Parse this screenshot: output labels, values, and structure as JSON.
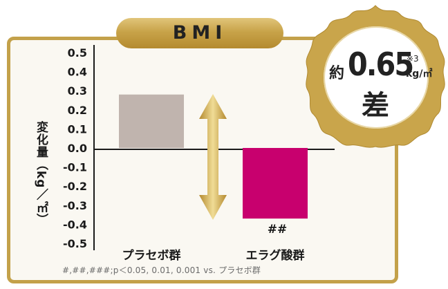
{
  "chart_data": {
    "type": "bar",
    "title": "BMI",
    "categories": [
      "プラセボ群",
      "エラグ酸群"
    ],
    "values": [
      0.28,
      -0.37
    ],
    "colors": [
      "#c0b4ae",
      "#c8006e"
    ],
    "ylabel": "変化量（kg／㎡）",
    "ylim": [
      -0.5,
      0.5
    ],
    "yticks": [
      "0.5",
      "0.4",
      "0.3",
      "0.2",
      "0.1",
      "0.0",
      "-0.1",
      "-0.2",
      "-0.3",
      "-0.4",
      "-0.5"
    ],
    "annotations": [
      "##"
    ],
    "grid": false
  },
  "badge": {
    "prefix": "約",
    "value": "0.65",
    "note": "※3",
    "unit": "kg/㎡",
    "suffix": "差"
  },
  "footnote": "#,##,###;p＜0.05, 0.01, 0.001 vs. プラセボ群",
  "colors": {
    "gold": "#c3a14a",
    "arrow": "#d4b050",
    "placebo": "#c0b4ae",
    "ellagic": "#c8006e"
  }
}
